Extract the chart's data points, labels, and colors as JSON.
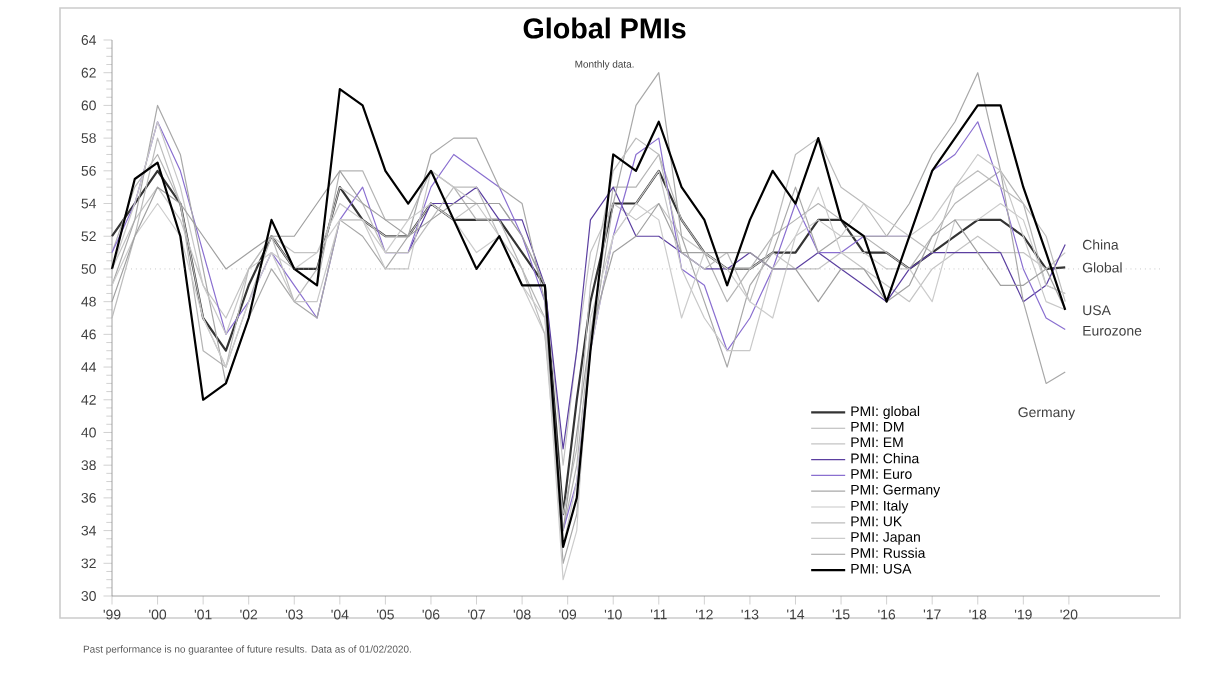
{
  "chart_data": {
    "type": "line",
    "title": "Global PMIs",
    "subtitle": "Monthly data.",
    "x": [
      1999.0,
      1999.5,
      2000.0,
      2000.5,
      2001.0,
      2001.5,
      2002.0,
      2002.5,
      2003.0,
      2003.5,
      2004.0,
      2004.5,
      2005.0,
      2005.5,
      2006.0,
      2006.5,
      2007.0,
      2007.5,
      2008.0,
      2008.5,
      2008.9,
      2009.2,
      2009.5,
      2010.0,
      2010.5,
      2011.0,
      2011.5,
      2012.0,
      2012.5,
      2013.0,
      2013.5,
      2014.0,
      2014.5,
      2015.0,
      2015.5,
      2016.0,
      2016.5,
      2017.0,
      2017.5,
      2018.0,
      2018.5,
      2019.0,
      2019.5,
      2019.92
    ],
    "series": [
      {
        "name": "PMI: global",
        "color": "#333333",
        "values": [
          52,
          54,
          56,
          54,
          47,
          45,
          49,
          52,
          50,
          50,
          55,
          53,
          52,
          52,
          54,
          53,
          53,
          53,
          51,
          49,
          35,
          42,
          48,
          54,
          54,
          56,
          53,
          51,
          50,
          50,
          51,
          51,
          53,
          53,
          51,
          51,
          50,
          51,
          52,
          53,
          53,
          52,
          50,
          50.1
        ]
      },
      {
        "name": "PMI: DM",
        "color": "#b4b4b4",
        "values": [
          51,
          55,
          57,
          54,
          45,
          44,
          48,
          52,
          50,
          49,
          56,
          56,
          53,
          53,
          56,
          55,
          53,
          53,
          50,
          47,
          34,
          38,
          46,
          55,
          55,
          57,
          53,
          51,
          48,
          50,
          52,
          53,
          54,
          53,
          52,
          51,
          50,
          52,
          54,
          55,
          56,
          54,
          49,
          48.5
        ]
      },
      {
        "name": "PMI: EM",
        "color": "#c4c4c4",
        "values": [
          50,
          53,
          55,
          53,
          49,
          47,
          50,
          52,
          51,
          51,
          54,
          53,
          52,
          52,
          54,
          53,
          54,
          54,
          52,
          49,
          38,
          45,
          51,
          54,
          53,
          54,
          52,
          51,
          50,
          50,
          51,
          50,
          50,
          51,
          50,
          49,
          48,
          50,
          51,
          52,
          51,
          51,
          50,
          51
        ]
      },
      {
        "name": "PMI: China",
        "color": "#5b3fa0",
        "values": [
          null,
          null,
          null,
          null,
          null,
          null,
          null,
          null,
          null,
          null,
          null,
          null,
          null,
          51,
          54,
          54,
          55,
          53,
          53,
          49,
          39,
          45,
          53,
          55,
          52,
          52,
          51,
          50,
          50,
          51,
          50,
          50,
          51,
          50,
          49,
          48,
          50,
          51,
          51,
          51,
          51,
          48,
          49,
          51.5
        ]
      },
      {
        "name": "PMI: Euro",
        "color": "#8a6fd0",
        "values": [
          51,
          54,
          59,
          56,
          51,
          46,
          48,
          51,
          49,
          47,
          53,
          55,
          51,
          51,
          55,
          57,
          56,
          55,
          52,
          48,
          34,
          37,
          45,
          52,
          57,
          58,
          50,
          49,
          45,
          47,
          50,
          54,
          51,
          51,
          52,
          52,
          52,
          56,
          57,
          59,
          55,
          50,
          47,
          46.3
        ]
      },
      {
        "name": "PMI: Germany",
        "color": "#a8a8a8",
        "values": [
          49,
          53,
          60,
          57,
          50,
          43,
          47,
          50,
          48,
          47,
          53,
          52,
          50,
          52,
          57,
          58,
          58,
          55,
          54,
          48,
          32,
          35,
          45,
          54,
          60,
          62,
          52,
          48,
          44,
          49,
          51,
          55,
          51,
          52,
          52,
          52,
          54,
          57,
          59,
          62,
          56,
          48,
          43,
          43.7
        ]
      },
      {
        "name": "PMI: Italy",
        "color": "#c8c8c8",
        "values": [
          50,
          54,
          59,
          55,
          49,
          46,
          50,
          51,
          48,
          48,
          53,
          53,
          50,
          50,
          56,
          55,
          54,
          52,
          49,
          46,
          33,
          37,
          45,
          52,
          54,
          56,
          50,
          47,
          45,
          45,
          50,
          52,
          53,
          52,
          54,
          53,
          52,
          53,
          55,
          57,
          56,
          52,
          48,
          47.5
        ]
      },
      {
        "name": "PMI: UK",
        "color": "#bcbcbc",
        "values": [
          47,
          52,
          58,
          54,
          47,
          44,
          50,
          52,
          48,
          50,
          55,
          54,
          51,
          51,
          53,
          55,
          55,
          52,
          50,
          46,
          35,
          39,
          49,
          56,
          58,
          57,
          51,
          50,
          51,
          48,
          52,
          57,
          58,
          55,
          54,
          52,
          52,
          51,
          55,
          56,
          55,
          54,
          52,
          48
        ]
      },
      {
        "name": "PMI: Japan",
        "color": "#cccccc",
        "values": [
          49,
          52,
          54,
          52,
          47,
          44,
          48,
          51,
          50,
          51,
          53,
          53,
          51,
          53,
          54,
          53,
          51,
          52,
          49,
          47,
          31,
          34,
          47,
          52,
          54,
          53,
          47,
          51,
          50,
          48,
          47,
          52,
          55,
          51,
          51,
          50,
          50,
          48,
          53,
          53,
          54,
          53,
          49,
          48.5
        ]
      },
      {
        "name": "PMI: Russia",
        "color": "#a0a0a0",
        "values": [
          48,
          52,
          55,
          54,
          52,
          50,
          51,
          52,
          52,
          54,
          56,
          54,
          53,
          52,
          53,
          54,
          54,
          54,
          52,
          49,
          34,
          40,
          46,
          51,
          52,
          54,
          51,
          51,
          51,
          51,
          50,
          50,
          48,
          50,
          50,
          48,
          49,
          52,
          53,
          51,
          49,
          49,
          50,
          47.5
        ]
      },
      {
        "name": "PMI: USA",
        "color": "#000000",
        "values": [
          50,
          55.5,
          56.5,
          52,
          42,
          43,
          47,
          53,
          50,
          49,
          61,
          60,
          56,
          54,
          56,
          53,
          50,
          52,
          49,
          49,
          33,
          36,
          45,
          57,
          56,
          59,
          55,
          53,
          49,
          53,
          56,
          54,
          58,
          53,
          52,
          48,
          52,
          56,
          58,
          60,
          60,
          55,
          51,
          47.5
        ]
      }
    ],
    "xlim": [
      1999,
      2022
    ],
    "xticks": [
      {
        "value": 1999,
        "label": "'99"
      },
      {
        "value": 2000,
        "label": "'00"
      },
      {
        "value": 2001,
        "label": "'01"
      },
      {
        "value": 2002,
        "label": "'02"
      },
      {
        "value": 2003,
        "label": "'03"
      },
      {
        "value": 2004,
        "label": "'04"
      },
      {
        "value": 2005,
        "label": "'05"
      },
      {
        "value": 2006,
        "label": "'06"
      },
      {
        "value": 2007,
        "label": "'07"
      },
      {
        "value": 2008,
        "label": "'08"
      },
      {
        "value": 2009,
        "label": "'09"
      },
      {
        "value": 2010,
        "label": "'10"
      },
      {
        "value": 2011,
        "label": "'11"
      },
      {
        "value": 2012,
        "label": "'12"
      },
      {
        "value": 2013,
        "label": "'13"
      },
      {
        "value": 2014,
        "label": "'14"
      },
      {
        "value": 2015,
        "label": "'15"
      },
      {
        "value": 2016,
        "label": "'16"
      },
      {
        "value": 2017,
        "label": "'17"
      },
      {
        "value": 2018,
        "label": "'18"
      },
      {
        "value": 2019,
        "label": "'19"
      },
      {
        "value": 2020,
        "label": "'20"
      }
    ],
    "ylim": [
      30,
      64
    ],
    "yticks": [
      30,
      32,
      34,
      36,
      38,
      40,
      42,
      44,
      46,
      48,
      50,
      52,
      54,
      56,
      58,
      60,
      62,
      64
    ],
    "ref_lines": [
      {
        "axis": "y",
        "value": 50,
        "color": "#aaaaaa",
        "line_style": "dotted"
      }
    ],
    "annotations": [
      "China",
      "Global",
      "USA",
      "Eurozone",
      "Germany",
      "Past performance is no guarantee of future results. Data as of 01/02/2020."
    ],
    "legend": "bottom right",
    "grid": false,
    "marker": "none",
    "line_style": "solid"
  }
}
